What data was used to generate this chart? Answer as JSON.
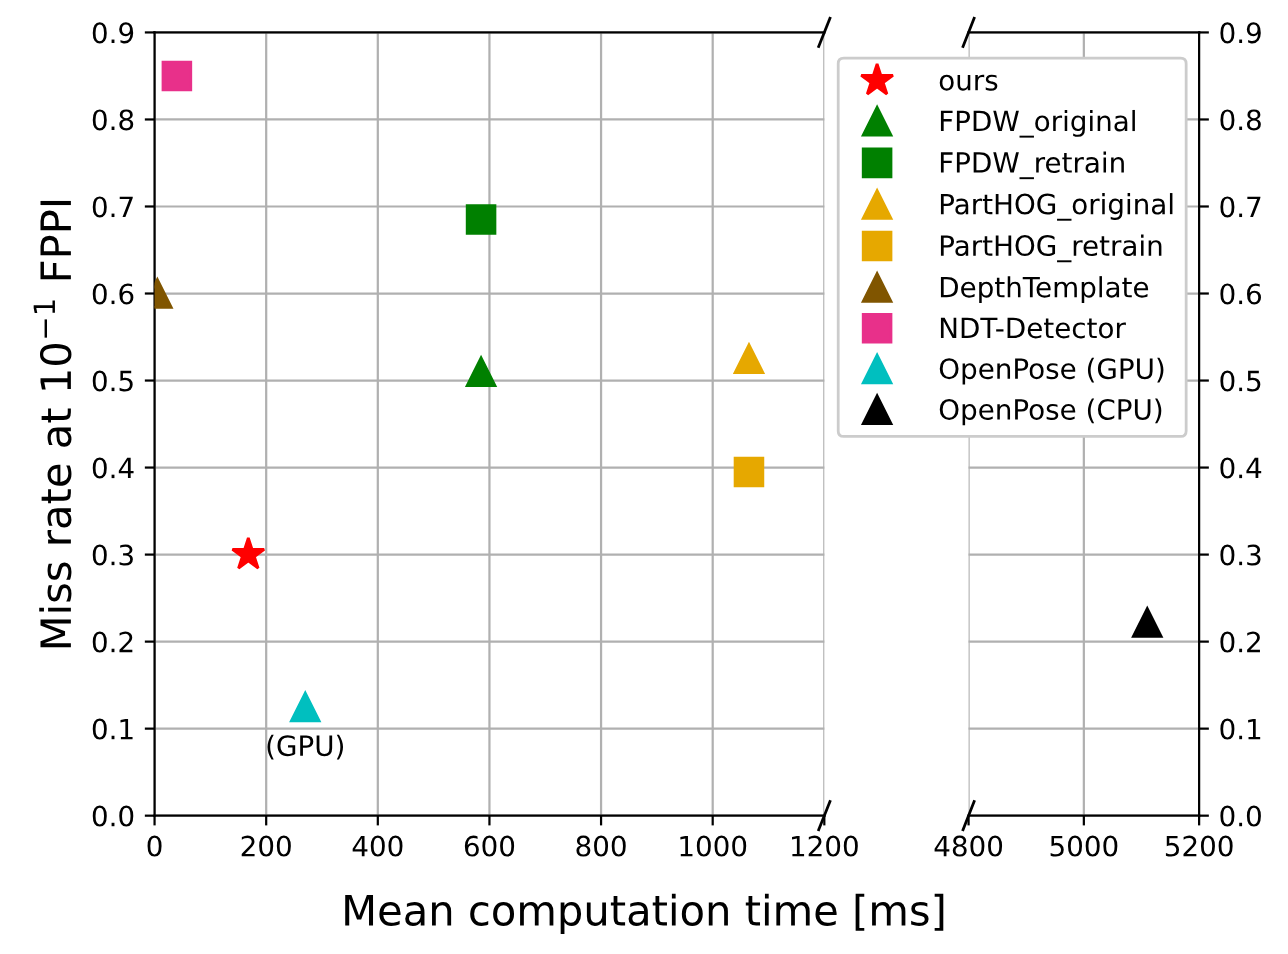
{
  "chart_data": [
    {
      "type": "scatter",
      "xlabel": "Mean computation time [ms]",
      "ylabel": "Miss rate at 10$^{−1}$ FPPI",
      "xlim": [
        0,
        1200
      ],
      "xticks": [
        0,
        200,
        400,
        600,
        800,
        1000,
        1200
      ],
      "ylim": [
        0,
        0.9
      ],
      "yticks": [
        {
          "value": 0,
          "label": "0.0"
        },
        0.1,
        0.2,
        0.3,
        0.4,
        0.5,
        0.6,
        0.7,
        0.8,
        0.9
      ],
      "grid": true,
      "legend": "top right",
      "annotations": [
        {
          "text": "(GPU)",
          "x": 270,
          "y": 0.125
        }
      ],
      "series": [
        {
          "name": "ours",
          "color": "#ff0000",
          "marker": "star",
          "x": [
            168
          ],
          "values": [
            0.3
          ]
        },
        {
          "name": "FPDW_original",
          "color": "#008000",
          "marker": "triangle",
          "x": [
            585
          ],
          "values": [
            0.51
          ]
        },
        {
          "name": "FPDW_retrain",
          "color": "#008000",
          "marker": "square",
          "x": [
            585
          ],
          "values": [
            0.685
          ]
        },
        {
          "name": "PartHOG_original",
          "color": "#e6a800",
          "marker": "triangle",
          "x": [
            1065
          ],
          "values": [
            0.525
          ]
        },
        {
          "name": "PartHOG_retrain",
          "color": "#e6a800",
          "marker": "square",
          "x": [
            1065
          ],
          "values": [
            0.395
          ]
        },
        {
          "name": "DepthTemplate",
          "color": "#805500",
          "marker": "triangle",
          "x": [
            5
          ],
          "values": [
            0.6
          ]
        },
        {
          "name": "NDT-Detector",
          "color": "#e8308a",
          "marker": "square",
          "x": [
            40
          ],
          "values": [
            0.85
          ]
        },
        {
          "name": "OpenPose (GPU)",
          "color": "#00bfbf",
          "marker": "triangle",
          "x": [
            270
          ],
          "values": [
            0.125
          ]
        }
      ]
    },
    {
      "type": "scatter",
      "xlim": [
        4800,
        5200
      ],
      "xticks": [
        4800,
        5000,
        5200
      ],
      "ylim": [
        0,
        0.9
      ],
      "yticks": [
        {
          "value": 0,
          "label": "0.0"
        },
        0.1,
        0.2,
        0.3,
        0.4,
        0.5,
        0.6,
        0.7,
        0.8,
        0.9
      ],
      "grid": true,
      "series": [
        {
          "name": "OpenPose (CPU)",
          "color": "#000000",
          "marker": "triangle",
          "x": [
            5110
          ],
          "values": [
            0.222
          ]
        }
      ]
    }
  ]
}
